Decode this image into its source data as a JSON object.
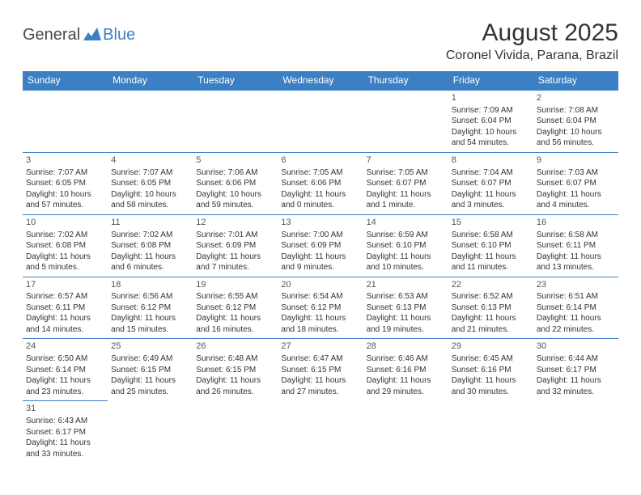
{
  "logo": {
    "general": "General",
    "blue": "Blue"
  },
  "title": "August 2025",
  "location": "Coronel Vivida, Parana, Brazil",
  "header_row": [
    "Sunday",
    "Monday",
    "Tuesday",
    "Wednesday",
    "Thursday",
    "Friday",
    "Saturday"
  ],
  "colors": {
    "header_bg": "#3b7fc4",
    "header_text": "#ffffff",
    "border": "#3b7fc4",
    "text": "#333333"
  },
  "weeks": [
    [
      null,
      null,
      null,
      null,
      null,
      {
        "d": "1",
        "sr": "Sunrise: 7:09 AM",
        "ss": "Sunset: 6:04 PM",
        "dl1": "Daylight: 10 hours",
        "dl2": "and 54 minutes."
      },
      {
        "d": "2",
        "sr": "Sunrise: 7:08 AM",
        "ss": "Sunset: 6:04 PM",
        "dl1": "Daylight: 10 hours",
        "dl2": "and 56 minutes."
      }
    ],
    [
      {
        "d": "3",
        "sr": "Sunrise: 7:07 AM",
        "ss": "Sunset: 6:05 PM",
        "dl1": "Daylight: 10 hours",
        "dl2": "and 57 minutes."
      },
      {
        "d": "4",
        "sr": "Sunrise: 7:07 AM",
        "ss": "Sunset: 6:05 PM",
        "dl1": "Daylight: 10 hours",
        "dl2": "and 58 minutes."
      },
      {
        "d": "5",
        "sr": "Sunrise: 7:06 AM",
        "ss": "Sunset: 6:06 PM",
        "dl1": "Daylight: 10 hours",
        "dl2": "and 59 minutes."
      },
      {
        "d": "6",
        "sr": "Sunrise: 7:05 AM",
        "ss": "Sunset: 6:06 PM",
        "dl1": "Daylight: 11 hours",
        "dl2": "and 0 minutes."
      },
      {
        "d": "7",
        "sr": "Sunrise: 7:05 AM",
        "ss": "Sunset: 6:07 PM",
        "dl1": "Daylight: 11 hours",
        "dl2": "and 1 minute."
      },
      {
        "d": "8",
        "sr": "Sunrise: 7:04 AM",
        "ss": "Sunset: 6:07 PM",
        "dl1": "Daylight: 11 hours",
        "dl2": "and 3 minutes."
      },
      {
        "d": "9",
        "sr": "Sunrise: 7:03 AM",
        "ss": "Sunset: 6:07 PM",
        "dl1": "Daylight: 11 hours",
        "dl2": "and 4 minutes."
      }
    ],
    [
      {
        "d": "10",
        "sr": "Sunrise: 7:02 AM",
        "ss": "Sunset: 6:08 PM",
        "dl1": "Daylight: 11 hours",
        "dl2": "and 5 minutes."
      },
      {
        "d": "11",
        "sr": "Sunrise: 7:02 AM",
        "ss": "Sunset: 6:08 PM",
        "dl1": "Daylight: 11 hours",
        "dl2": "and 6 minutes."
      },
      {
        "d": "12",
        "sr": "Sunrise: 7:01 AM",
        "ss": "Sunset: 6:09 PM",
        "dl1": "Daylight: 11 hours",
        "dl2": "and 7 minutes."
      },
      {
        "d": "13",
        "sr": "Sunrise: 7:00 AM",
        "ss": "Sunset: 6:09 PM",
        "dl1": "Daylight: 11 hours",
        "dl2": "and 9 minutes."
      },
      {
        "d": "14",
        "sr": "Sunrise: 6:59 AM",
        "ss": "Sunset: 6:10 PM",
        "dl1": "Daylight: 11 hours",
        "dl2": "and 10 minutes."
      },
      {
        "d": "15",
        "sr": "Sunrise: 6:58 AM",
        "ss": "Sunset: 6:10 PM",
        "dl1": "Daylight: 11 hours",
        "dl2": "and 11 minutes."
      },
      {
        "d": "16",
        "sr": "Sunrise: 6:58 AM",
        "ss": "Sunset: 6:11 PM",
        "dl1": "Daylight: 11 hours",
        "dl2": "and 13 minutes."
      }
    ],
    [
      {
        "d": "17",
        "sr": "Sunrise: 6:57 AM",
        "ss": "Sunset: 6:11 PM",
        "dl1": "Daylight: 11 hours",
        "dl2": "and 14 minutes."
      },
      {
        "d": "18",
        "sr": "Sunrise: 6:56 AM",
        "ss": "Sunset: 6:12 PM",
        "dl1": "Daylight: 11 hours",
        "dl2": "and 15 minutes."
      },
      {
        "d": "19",
        "sr": "Sunrise: 6:55 AM",
        "ss": "Sunset: 6:12 PM",
        "dl1": "Daylight: 11 hours",
        "dl2": "and 16 minutes."
      },
      {
        "d": "20",
        "sr": "Sunrise: 6:54 AM",
        "ss": "Sunset: 6:12 PM",
        "dl1": "Daylight: 11 hours",
        "dl2": "and 18 minutes."
      },
      {
        "d": "21",
        "sr": "Sunrise: 6:53 AM",
        "ss": "Sunset: 6:13 PM",
        "dl1": "Daylight: 11 hours",
        "dl2": "and 19 minutes."
      },
      {
        "d": "22",
        "sr": "Sunrise: 6:52 AM",
        "ss": "Sunset: 6:13 PM",
        "dl1": "Daylight: 11 hours",
        "dl2": "and 21 minutes."
      },
      {
        "d": "23",
        "sr": "Sunrise: 6:51 AM",
        "ss": "Sunset: 6:14 PM",
        "dl1": "Daylight: 11 hours",
        "dl2": "and 22 minutes."
      }
    ],
    [
      {
        "d": "24",
        "sr": "Sunrise: 6:50 AM",
        "ss": "Sunset: 6:14 PM",
        "dl1": "Daylight: 11 hours",
        "dl2": "and 23 minutes."
      },
      {
        "d": "25",
        "sr": "Sunrise: 6:49 AM",
        "ss": "Sunset: 6:15 PM",
        "dl1": "Daylight: 11 hours",
        "dl2": "and 25 minutes."
      },
      {
        "d": "26",
        "sr": "Sunrise: 6:48 AM",
        "ss": "Sunset: 6:15 PM",
        "dl1": "Daylight: 11 hours",
        "dl2": "and 26 minutes."
      },
      {
        "d": "27",
        "sr": "Sunrise: 6:47 AM",
        "ss": "Sunset: 6:15 PM",
        "dl1": "Daylight: 11 hours",
        "dl2": "and 27 minutes."
      },
      {
        "d": "28",
        "sr": "Sunrise: 6:46 AM",
        "ss": "Sunset: 6:16 PM",
        "dl1": "Daylight: 11 hours",
        "dl2": "and 29 minutes."
      },
      {
        "d": "29",
        "sr": "Sunrise: 6:45 AM",
        "ss": "Sunset: 6:16 PM",
        "dl1": "Daylight: 11 hours",
        "dl2": "and 30 minutes."
      },
      {
        "d": "30",
        "sr": "Sunrise: 6:44 AM",
        "ss": "Sunset: 6:17 PM",
        "dl1": "Daylight: 11 hours",
        "dl2": "and 32 minutes."
      }
    ],
    [
      {
        "d": "31",
        "sr": "Sunrise: 6:43 AM",
        "ss": "Sunset: 6:17 PM",
        "dl1": "Daylight: 11 hours",
        "dl2": "and 33 minutes."
      },
      null,
      null,
      null,
      null,
      null,
      null
    ]
  ]
}
